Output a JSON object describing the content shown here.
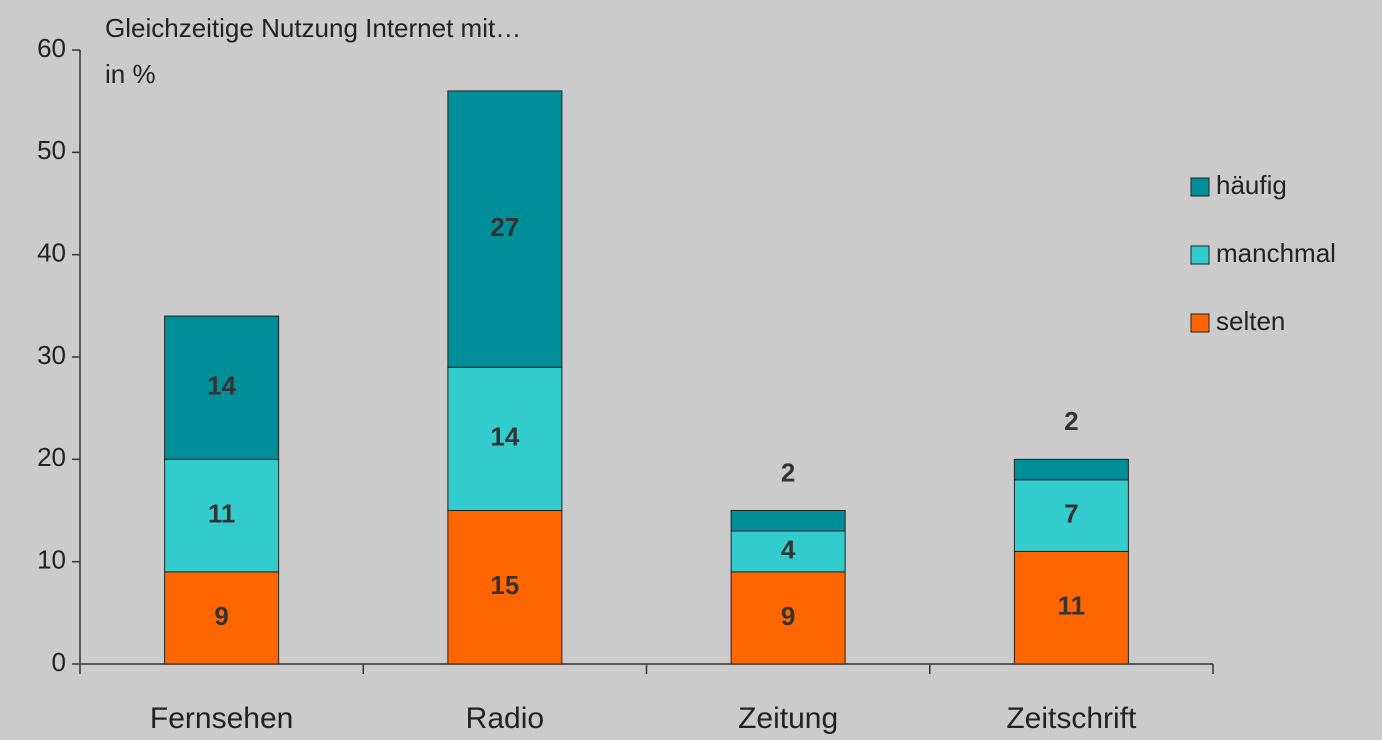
{
  "chart_data": {
    "type": "stacked_bar",
    "title": "Gleichzeitige Nutzung Internet mit…",
    "subtitle": "in %",
    "categories": [
      "Fernsehen",
      "Radio",
      "Zeitung",
      "Zeitschrift"
    ],
    "series": [
      {
        "name": "selten",
        "color": "#ff6600",
        "values": [
          9,
          15,
          9,
          11
        ]
      },
      {
        "name": "manchmal",
        "color": "#33cccc",
        "values": [
          11,
          14,
          4,
          7
        ]
      },
      {
        "name": "häufig",
        "color": "#008e99",
        "values": [
          14,
          27,
          2,
          2
        ]
      }
    ],
    "ylim": [
      0,
      60
    ],
    "yticks": [
      0,
      10,
      20,
      30,
      40,
      50,
      60
    ],
    "grid": false,
    "legend": "right"
  }
}
